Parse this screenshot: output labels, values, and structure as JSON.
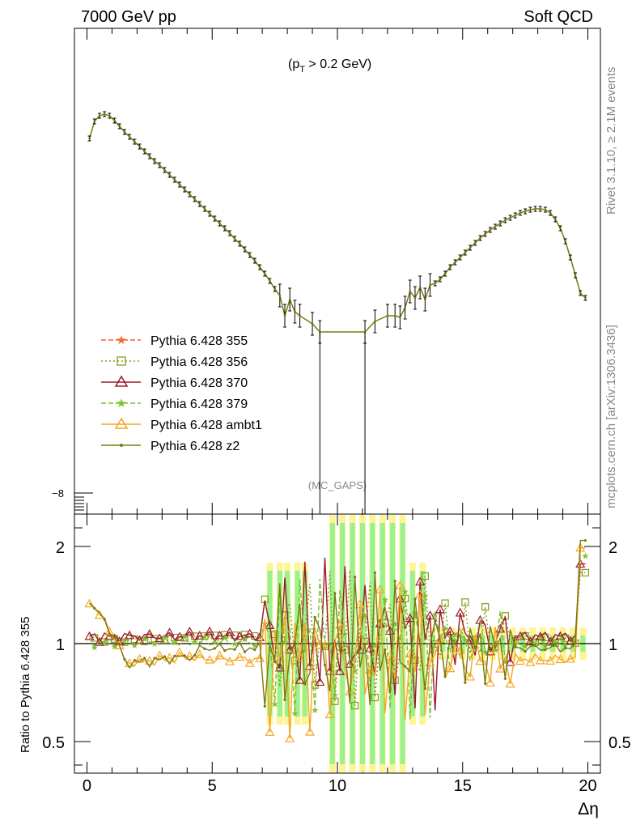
{
  "header": {
    "left": "7000 GeV pp",
    "right": "Soft QCD",
    "cut": "(p",
    "cut_sub": "T",
    "cut_rest": " > 0.2 GeV)",
    "watermark": "(MC_GAPS)"
  },
  "side_labels": {
    "rivet": "Rivet 3.1.10, ≥ 2.1M events",
    "mcplots": "mcplots.cern.ch [arXiv:1306.3436]"
  },
  "axes": {
    "xlabel": "Δη",
    "ratio_ylabel": "Ratio to Pythia 6.428 355",
    "main_ytick": "−8",
    "x_ticks": [
      "0",
      "5",
      "10",
      "15",
      "20"
    ],
    "ratio_ticks_left": [
      "2",
      "1",
      "0.5"
    ],
    "ratio_ticks_right": [
      "2",
      "1",
      "0.5"
    ]
  },
  "legend": [
    {
      "label": "Pythia 6.428 355",
      "color": "#f26522",
      "marker": "star",
      "dash": "6,3"
    },
    {
      "label": "Pythia 6.428 356",
      "color": "#8a9a1a",
      "marker": "square",
      "dash": "2,3"
    },
    {
      "label": "Pythia 6.428 370",
      "color": "#9e1a2a",
      "marker": "triangle",
      "dash": ""
    },
    {
      "label": "Pythia 6.428 379",
      "color": "#7cbf2a",
      "marker": "star",
      "dash": "6,3"
    },
    {
      "label": "Pythia 6.428 ambt1",
      "color": "#f5a623",
      "marker": "triangle",
      "dash": ""
    },
    {
      "label": "Pythia 6.428 z2",
      "color": "#7a7a10",
      "marker": "dot",
      "dash": ""
    }
  ],
  "chart_data": {
    "type": "line",
    "xlim": [
      -0.5,
      20.5
    ],
    "ratio_ylim": [
      0.4,
      2.4
    ],
    "ratio_log": true,
    "main_curve": {
      "name": "Pythia 6.428 z2",
      "x": [
        0.1,
        0.3,
        0.5,
        0.7,
        0.9,
        1.1,
        1.3,
        1.5,
        1.7,
        1.9,
        2.1,
        2.3,
        2.5,
        2.7,
        2.9,
        3.1,
        3.3,
        3.5,
        3.7,
        3.9,
        4.1,
        4.3,
        4.5,
        4.7,
        4.9,
        5.1,
        5.3,
        5.5,
        5.7,
        5.9,
        6.1,
        6.3,
        6.5,
        6.7,
        6.9,
        7.1,
        7.3,
        7.5,
        7.7,
        7.9,
        8.1,
        8.3,
        8.5,
        9.0,
        9.3,
        11.1,
        11.5,
        12.0,
        12.3,
        12.5,
        12.7,
        12.9,
        13.1,
        13.3,
        13.5,
        13.7,
        13.9,
        14.1,
        14.3,
        14.5,
        14.7,
        14.9,
        15.1,
        15.3,
        15.5,
        15.7,
        15.9,
        16.1,
        16.3,
        16.5,
        16.7,
        16.9,
        17.1,
        17.3,
        17.5,
        17.7,
        17.9,
        18.1,
        18.3,
        18.5,
        18.7,
        18.9,
        19.1,
        19.3,
        19.5,
        19.7,
        19.9
      ],
      "y": [
        171,
        150,
        143,
        141,
        143,
        149,
        156,
        163,
        169,
        175,
        181,
        187,
        193,
        199,
        204,
        210,
        216,
        222,
        228,
        234,
        240,
        246,
        252,
        258,
        264,
        270,
        276,
        282,
        288,
        295,
        301,
        308,
        315,
        322,
        330,
        338,
        347,
        357,
        365,
        390,
        370,
        385,
        390,
        400,
        410,
        410,
        397,
        390,
        390,
        392,
        380,
        360,
        368,
        355,
        370,
        352,
        350,
        345,
        338,
        330,
        324,
        318,
        312,
        306,
        300,
        294,
        289,
        284,
        280,
        276,
        272,
        269,
        266,
        263,
        261,
        259,
        258,
        258,
        259,
        263,
        271,
        282,
        298,
        318,
        340,
        362,
        368
      ],
      "y_note": "unlabeled log axis; values given as relative plot-height units (0 = top)"
    },
    "ratio_series": [
      {
        "name": "Pythia 6.428 355",
        "y": 1.0
      },
      {
        "name": "Pythia 6.428 356",
        "y_mean": 1.02
      },
      {
        "name": "Pythia 6.428 370",
        "y_mean": 1.03
      },
      {
        "name": "Pythia 6.428 379",
        "y_mean": 0.99
      },
      {
        "name": "Pythia 6.428 ambt1",
        "y_mean": 0.88
      },
      {
        "name": "Pythia 6.428 z2",
        "y_mean": 0.95
      }
    ]
  }
}
